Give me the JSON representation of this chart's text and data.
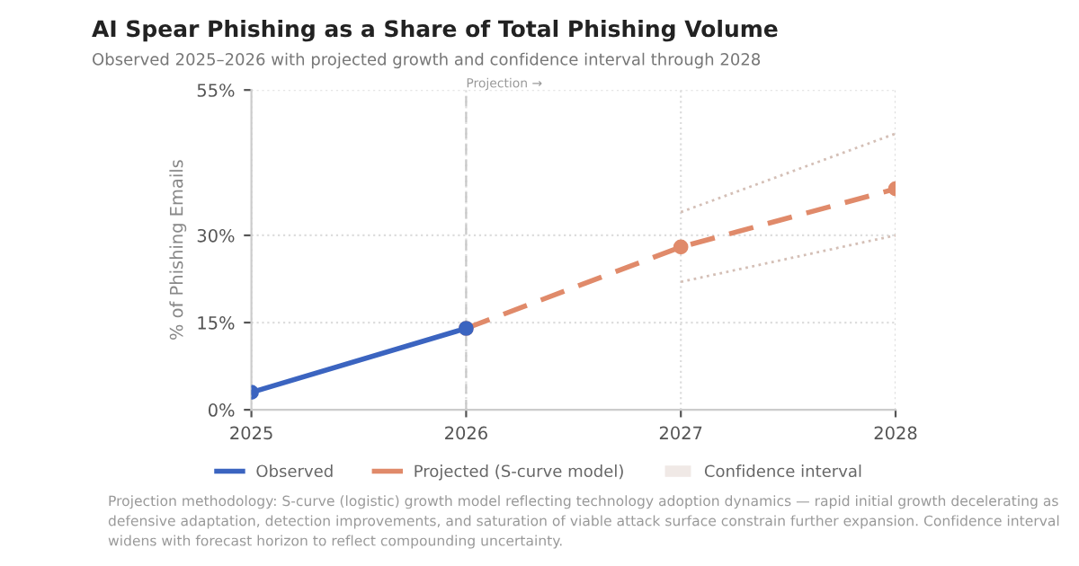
{
  "chart_data": {
    "type": "line",
    "title": "AI Spear Phishing as a Share of Total Phishing Volume",
    "subtitle": "Observed 2025–2026 with projected growth and confidence interval through 2028",
    "ylabel": "% of Phishing Emails",
    "series": [
      {
        "name": "Observed",
        "color": "#3b64c0",
        "x": [
          2025,
          2026
        ],
        "values": [
          3,
          14
        ],
        "line_style": "solid",
        "marker": "circle"
      },
      {
        "name": "Projected (S-curve model)",
        "color": "#e08a6a",
        "x": [
          2026,
          2027,
          2028
        ],
        "values": [
          14,
          28,
          38
        ],
        "line_style": "dashed",
        "marker": "circle"
      },
      {
        "name": "Confidence interval",
        "type": "line",
        "color": "#d4bfb6",
        "x": [
          2027,
          2028
        ],
        "values": [
          34,
          47.5
        ],
        "line_style": "dotted",
        "marker": "none"
      },
      {
        "type": "line",
        "color": "#d4bfb6",
        "x": [
          2027,
          2028
        ],
        "values": [
          22,
          30
        ],
        "line_style": "dotted",
        "marker": "none"
      }
    ],
    "xlim": [
      2025,
      2028
    ],
    "xticks": [
      2025,
      2026,
      2027,
      2028
    ],
    "ylim": [
      0,
      55
    ],
    "yticks": [
      {
        "value": 0,
        "label": "0%"
      },
      {
        "value": 15,
        "label": "15%"
      },
      {
        "value": 30,
        "label": "30%"
      },
      {
        "value": 55,
        "label": "55%"
      }
    ],
    "grid": true,
    "legend": "bottom",
    "ref_lines": [
      {
        "axis": "x",
        "value": 2026,
        "label": "Projection →",
        "color": "#c8c8c8",
        "line_style": "dashed"
      }
    ],
    "annotations": [
      "Projection methodology: S-curve (logistic) growth model reflecting technology adoption dynamics — rapid initial growth decelerating as defensive adaptation, detection improvements, and saturation of viable attack surface constrain further expansion. Confidence interval widens with forecast horizon to reflect compounding uncertainty."
    ]
  }
}
